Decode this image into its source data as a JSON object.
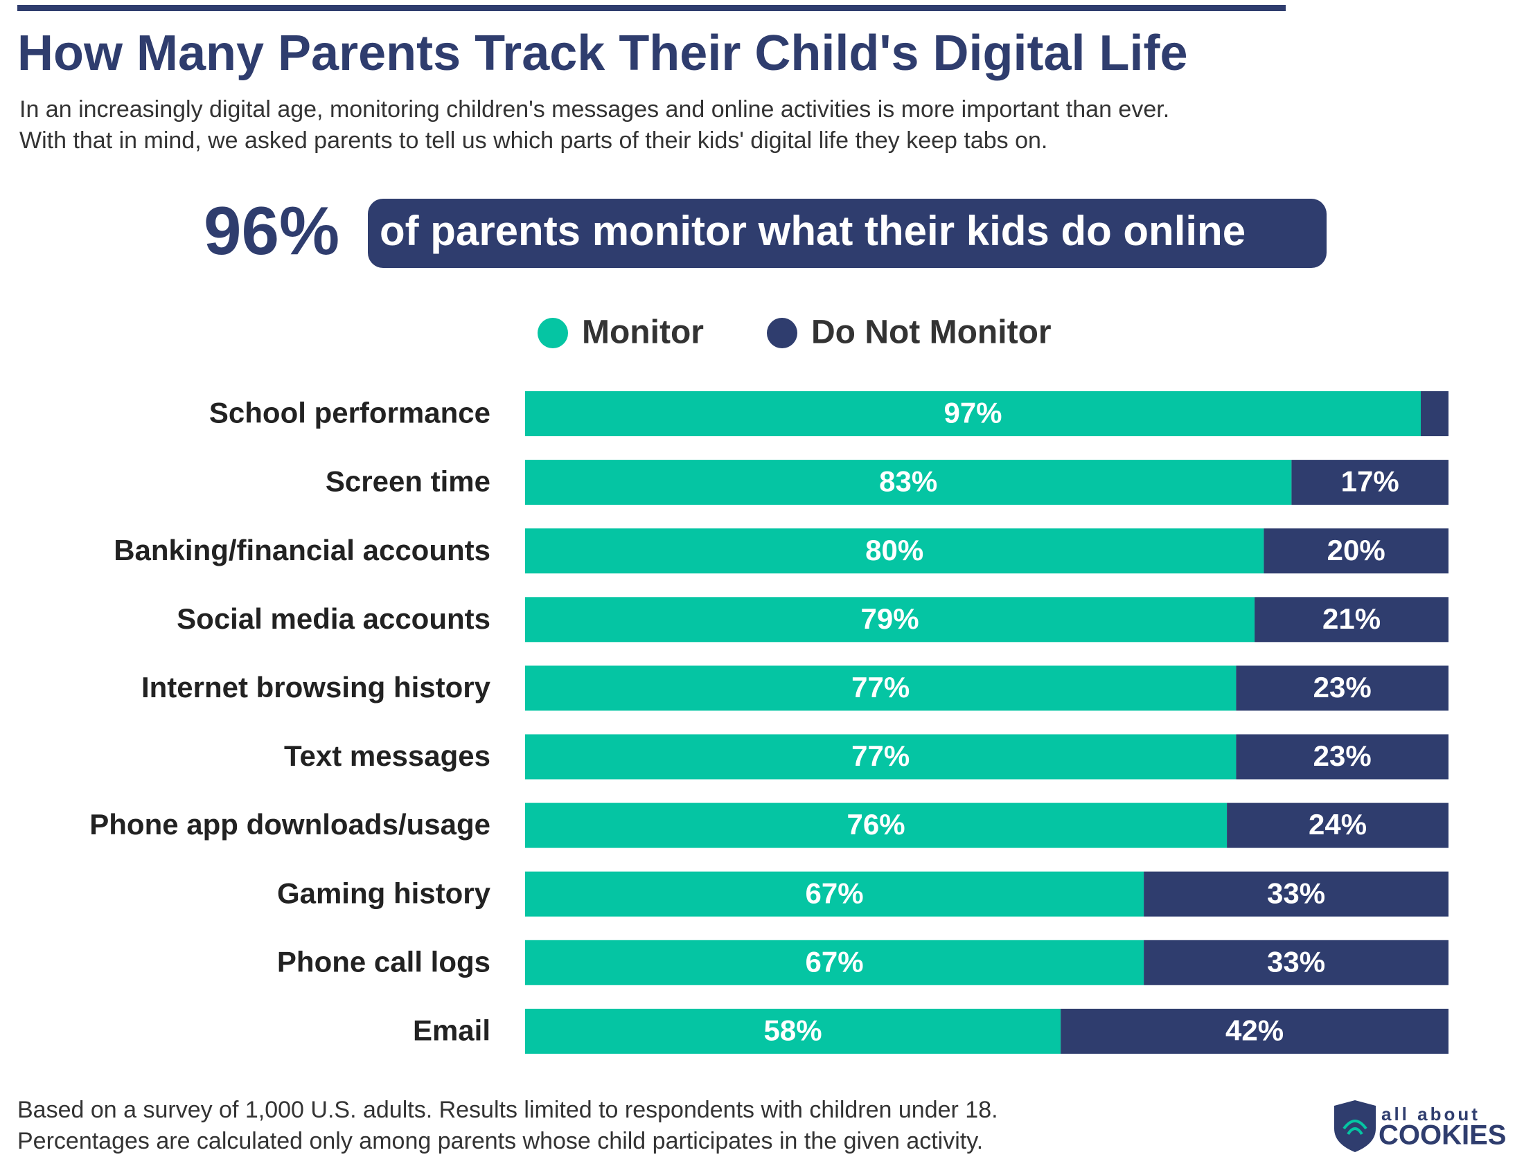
{
  "chart_data": {
    "type": "stacked-bar-horizontal",
    "title": "How Many Parents Track Their Child's Digital Life",
    "subtitle": [
      "In an increasingly digital age, monitoring children's messages and online activities is more important than ever.",
      "With that in mind, we asked parents to tell us which parts of their kids' digital life they keep tabs on."
    ],
    "highlight": {
      "figure": "96%",
      "text": "of parents monitor what their kids do online"
    },
    "categories": [
      "School performance",
      "Screen time",
      "Banking/financial accounts",
      "Social media accounts",
      "Internet browsing history",
      "Text messages",
      "Phone app downloads/usage",
      "Gaming history",
      "Phone call logs",
      "Email"
    ],
    "series": [
      {
        "name": "Monitor",
        "color": "#05c5a3",
        "values": [
          97,
          83,
          80,
          79,
          77,
          77,
          76,
          67,
          67,
          58
        ],
        "value_labels": [
          "97%",
          "83%",
          "80%",
          "79%",
          "77%",
          "77%",
          "76%",
          "67%",
          "67%",
          "58%"
        ]
      },
      {
        "name": "Do Not Monitor",
        "color": "#2f3d6e",
        "values": [
          3,
          17,
          20,
          21,
          23,
          23,
          24,
          33,
          33,
          42
        ],
        "value_labels": [
          null,
          "17%",
          "20%",
          "21%",
          "23%",
          "23%",
          "24%",
          "33%",
          "33%",
          "42%"
        ]
      }
    ],
    "xlim": [
      0,
      100
    ],
    "footnote": [
      "Based on a survey of 1,000 U.S. adults. Results limited to respondents with children under 18.",
      "Percentages are calculated only among parents whose child participates in the given activity."
    ],
    "logo": [
      "all about",
      "COOKIES"
    ]
  }
}
